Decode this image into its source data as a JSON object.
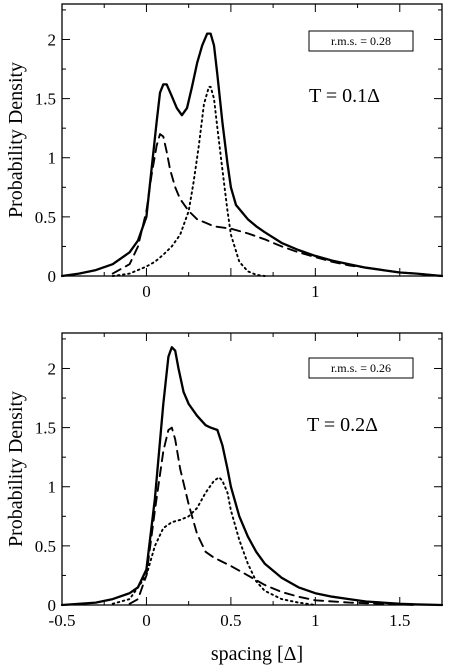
{
  "chart_data": [
    {
      "type": "line",
      "ylabel": "Probability Density",
      "xlabel": "",
      "xlim": [
        -0.5,
        1.75
      ],
      "ylim": [
        0,
        2.3
      ],
      "x_ticks": [
        0,
        1
      ],
      "x_tick_labels": [
        "0",
        "1"
      ],
      "y_ticks": [
        0,
        0.5,
        1,
        1.5,
        2
      ],
      "y_tick_labels": [
        "0",
        "0.5",
        "1",
        "1.5",
        "2"
      ],
      "annotation": "T = 0.1Δ",
      "rms_label": "r.m.s. = 0.28",
      "series": [
        {
          "style": "solid",
          "x": [
            -0.5,
            -0.4,
            -0.3,
            -0.2,
            -0.1,
            -0.05,
            0,
            0.03,
            0.06,
            0.08,
            0.1,
            0.12,
            0.15,
            0.18,
            0.21,
            0.24,
            0.27,
            0.3,
            0.33,
            0.36,
            0.38,
            0.4,
            0.42,
            0.45,
            0.48,
            0.5,
            0.53,
            0.56,
            0.6,
            0.65,
            0.7,
            0.8,
            0.9,
            1.0,
            1.1,
            1.2,
            1.3,
            1.4,
            1.5,
            1.6,
            1.75
          ],
          "y": [
            0.0,
            0.02,
            0.05,
            0.1,
            0.2,
            0.3,
            0.5,
            0.9,
            1.3,
            1.55,
            1.62,
            1.62,
            1.52,
            1.42,
            1.36,
            1.42,
            1.6,
            1.8,
            1.95,
            2.05,
            2.05,
            1.95,
            1.7,
            1.3,
            0.95,
            0.75,
            0.6,
            0.55,
            0.48,
            0.42,
            0.37,
            0.28,
            0.22,
            0.17,
            0.13,
            0.1,
            0.07,
            0.05,
            0.03,
            0.02,
            0.0
          ]
        },
        {
          "style": "dashed",
          "x": [
            -0.2,
            -0.1,
            -0.05,
            0,
            0.03,
            0.06,
            0.08,
            0.1,
            0.12,
            0.14,
            0.17,
            0.2,
            0.25,
            0.3,
            0.35,
            0.4,
            0.5,
            0.6,
            0.7,
            0.8,
            0.9,
            1.0,
            1.1,
            1.2,
            1.3,
            1.4,
            1.5,
            1.6,
            1.75
          ],
          "y": [
            0.02,
            0.1,
            0.25,
            0.55,
            0.85,
            1.1,
            1.2,
            1.18,
            1.05,
            0.9,
            0.75,
            0.65,
            0.55,
            0.48,
            0.45,
            0.42,
            0.4,
            0.36,
            0.31,
            0.25,
            0.2,
            0.16,
            0.12,
            0.09,
            0.07,
            0.05,
            0.03,
            0.02,
            0.0
          ]
        },
        {
          "style": "dotted",
          "x": [
            -0.2,
            -0.1,
            0,
            0.05,
            0.1,
            0.15,
            0.2,
            0.25,
            0.28,
            0.31,
            0.34,
            0.37,
            0.38,
            0.4,
            0.42,
            0.45,
            0.48,
            0.5,
            0.55,
            0.6,
            0.65,
            0.7
          ],
          "y": [
            0.0,
            0.02,
            0.08,
            0.12,
            0.18,
            0.25,
            0.35,
            0.55,
            0.8,
            1.1,
            1.45,
            1.6,
            1.6,
            1.5,
            1.25,
            0.9,
            0.55,
            0.35,
            0.12,
            0.04,
            0.01,
            0.0
          ]
        }
      ]
    },
    {
      "type": "line",
      "ylabel": "Probability Density",
      "xlabel": "spacing  [Δ]",
      "xlim": [
        -0.5,
        1.75
      ],
      "ylim": [
        0,
        2.3
      ],
      "x_ticks": [
        -0.5,
        0,
        0.5,
        1,
        1.5
      ],
      "x_tick_labels": [
        "-0.5",
        "0",
        "0.5",
        "1",
        "1.5"
      ],
      "y_ticks": [
        0,
        0.5,
        1,
        1.5,
        2
      ],
      "y_tick_labels": [
        "0",
        "0.5",
        "1",
        "1.5",
        "2"
      ],
      "annotation": "T = 0.2Δ",
      "rms_label": "r.m.s. = 0.26",
      "series": [
        {
          "style": "solid",
          "x": [
            -0.5,
            -0.3,
            -0.2,
            -0.1,
            -0.05,
            0,
            0.05,
            0.1,
            0.13,
            0.15,
            0.17,
            0.19,
            0.22,
            0.25,
            0.3,
            0.35,
            0.38,
            0.42,
            0.45,
            0.48,
            0.5,
            0.55,
            0.6,
            0.65,
            0.7,
            0.8,
            0.9,
            1.0,
            1.1,
            1.2,
            1.3,
            1.4,
            1.5,
            1.6,
            1.75
          ],
          "y": [
            0.0,
            0.02,
            0.05,
            0.1,
            0.15,
            0.3,
            0.9,
            1.7,
            2.1,
            2.18,
            2.15,
            2.0,
            1.8,
            1.7,
            1.6,
            1.52,
            1.5,
            1.48,
            1.35,
            1.15,
            1.0,
            0.75,
            0.58,
            0.45,
            0.35,
            0.23,
            0.15,
            0.1,
            0.07,
            0.05,
            0.03,
            0.02,
            0.01,
            0.005,
            0.0
          ]
        },
        {
          "style": "dashed",
          "x": [
            -0.1,
            -0.05,
            0,
            0.05,
            0.1,
            0.13,
            0.15,
            0.17,
            0.2,
            0.25,
            0.3,
            0.35,
            0.4,
            0.5,
            0.6,
            0.7,
            0.8,
            0.9,
            1.0,
            1.2,
            1.4,
            1.6
          ],
          "y": [
            0.01,
            0.05,
            0.25,
            0.8,
            1.3,
            1.48,
            1.5,
            1.4,
            1.15,
            0.85,
            0.6,
            0.45,
            0.4,
            0.33,
            0.25,
            0.17,
            0.11,
            0.07,
            0.04,
            0.02,
            0.01,
            0.0
          ]
        },
        {
          "style": "dotted",
          "x": [
            -0.2,
            -0.1,
            0,
            0.05,
            0.1,
            0.15,
            0.2,
            0.25,
            0.3,
            0.35,
            0.4,
            0.43,
            0.45,
            0.48,
            0.5,
            0.55,
            0.6,
            0.65,
            0.7,
            0.8,
            0.9,
            1.0
          ],
          "y": [
            0.01,
            0.05,
            0.25,
            0.5,
            0.65,
            0.7,
            0.72,
            0.75,
            0.82,
            0.95,
            1.05,
            1.08,
            1.05,
            0.95,
            0.8,
            0.55,
            0.35,
            0.2,
            0.12,
            0.05,
            0.02,
            0.0
          ]
        }
      ]
    }
  ]
}
